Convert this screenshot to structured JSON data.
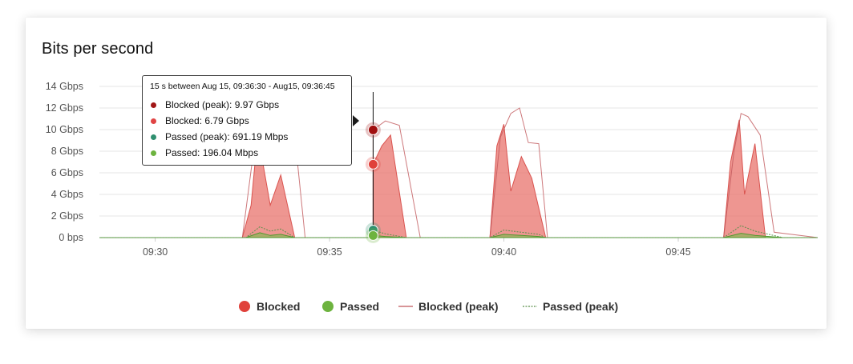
{
  "card": {
    "title": "Bits per second"
  },
  "tooltip": {
    "header": "15 s between Aug 15, 09:36:30 - Aug15, 09:36:45",
    "rows": [
      {
        "label": "Blocked (peak): 9.97 Gbps",
        "color": "#a11616"
      },
      {
        "label": "Blocked: 6.79 Gbps",
        "color": "#e04444"
      },
      {
        "label": "Passed (peak): 691.19 Mbps",
        "color": "#2f8f6f"
      },
      {
        "label": "Passed: 196.04 Mbps",
        "color": "#6db33f"
      }
    ]
  },
  "legend": {
    "blocked": "Blocked",
    "passed": "Passed",
    "blocked_peak": "Blocked (peak)",
    "passed_peak": "Passed (peak)"
  },
  "colors": {
    "blocked_fill": "#e8736c",
    "blocked_line": "#d9534f",
    "blocked_peak_line": "#c0565a",
    "passed_fill": "#7dbb4e",
    "passed_line": "#4f9a2f",
    "passed_peak_line": "#5a8f4a",
    "blocked_dot": "#e0413b",
    "passed_dot": "#6db33f",
    "peak_dot": "#a10f0f",
    "passed_peak_dot": "#2f8f6f",
    "grid": "#e6e6e6"
  },
  "chart_data": {
    "type": "area",
    "title": "Bits per second",
    "y_unit": "Gbps",
    "ylim": [
      0,
      14
    ],
    "yticks": [
      {
        "value": 0,
        "label": "0 bps"
      },
      {
        "value": 2,
        "label": "2 Gbps"
      },
      {
        "value": 4,
        "label": "4 Gbps"
      },
      {
        "value": 6,
        "label": "6 Gbps"
      },
      {
        "value": 8,
        "label": "8 Gbps"
      },
      {
        "value": 10,
        "label": "10 Gbps"
      },
      {
        "value": 12,
        "label": "12 Gbps"
      },
      {
        "value": 14,
        "label": "14 Gbps"
      }
    ],
    "x_unit": "minutes after 09:00",
    "xlim": [
      28.4,
      49.0
    ],
    "xticks": [
      {
        "value": 30,
        "label": "09:30"
      },
      {
        "value": 35,
        "label": "09:35"
      },
      {
        "value": 40,
        "label": "09:40"
      },
      {
        "value": 45,
        "label": "09:45"
      }
    ],
    "grid": true,
    "legend_position": "bottom",
    "hover_x": 36.25,
    "series": [
      {
        "name": "Blocked",
        "style": "area",
        "points": [
          [
            28.4,
            0
          ],
          [
            32.5,
            0
          ],
          [
            32.75,
            3
          ],
          [
            32.9,
            8.2
          ],
          [
            33.0,
            8.5
          ],
          [
            33.3,
            3
          ],
          [
            33.6,
            5.8
          ],
          [
            34.0,
            0
          ],
          [
            36.25,
            0
          ],
          [
            36.25,
            6.8
          ],
          [
            36.5,
            8.5
          ],
          [
            36.75,
            9.5
          ],
          [
            37.2,
            0
          ],
          [
            39.6,
            0
          ],
          [
            39.8,
            8.5
          ],
          [
            40.0,
            10.5
          ],
          [
            40.2,
            4.3
          ],
          [
            40.5,
            7.5
          ],
          [
            40.8,
            5.5
          ],
          [
            41.2,
            0
          ],
          [
            46.3,
            0
          ],
          [
            46.5,
            7
          ],
          [
            46.75,
            10.9
          ],
          [
            46.9,
            4
          ],
          [
            47.2,
            8.7
          ],
          [
            47.5,
            0
          ],
          [
            49.0,
            0
          ]
        ]
      },
      {
        "name": "Passed",
        "style": "area",
        "points": [
          [
            28.4,
            0
          ],
          [
            32.6,
            0
          ],
          [
            33.0,
            0.45
          ],
          [
            33.3,
            0.2
          ],
          [
            33.6,
            0.3
          ],
          [
            34.0,
            0
          ],
          [
            36.25,
            0
          ],
          [
            36.25,
            0.2
          ],
          [
            36.6,
            0.1
          ],
          [
            37.2,
            0
          ],
          [
            39.6,
            0
          ],
          [
            40.0,
            0.3
          ],
          [
            40.5,
            0.2
          ],
          [
            41.0,
            0.1
          ],
          [
            41.2,
            0
          ],
          [
            46.3,
            0
          ],
          [
            46.8,
            0.4
          ],
          [
            47.2,
            0.2
          ],
          [
            48.0,
            0
          ],
          [
            49.0,
            0
          ]
        ]
      },
      {
        "name": "Blocked (peak)",
        "style": "dotted-line",
        "points": [
          [
            28.4,
            0
          ],
          [
            32.5,
            0
          ],
          [
            32.8,
            7.5
          ],
          [
            33.0,
            8.8
          ],
          [
            33.3,
            9.8
          ],
          [
            33.8,
            10.8
          ],
          [
            34.0,
            9.5
          ],
          [
            34.3,
            0
          ],
          [
            36.25,
            0
          ],
          [
            36.25,
            9.97
          ],
          [
            36.6,
            10.8
          ],
          [
            37.0,
            10.4
          ],
          [
            37.6,
            0
          ],
          [
            39.6,
            0
          ],
          [
            39.9,
            9.3
          ],
          [
            40.2,
            11.5
          ],
          [
            40.45,
            12
          ],
          [
            40.7,
            8.8
          ],
          [
            41.0,
            8.7
          ],
          [
            41.25,
            0
          ],
          [
            46.3,
            0
          ],
          [
            46.6,
            8
          ],
          [
            46.8,
            11.5
          ],
          [
            47.0,
            11.2
          ],
          [
            47.35,
            9.5
          ],
          [
            47.75,
            0.5
          ],
          [
            49.0,
            0
          ]
        ]
      },
      {
        "name": "Passed (peak)",
        "style": "dotted-line",
        "points": [
          [
            28.4,
            0
          ],
          [
            32.6,
            0
          ],
          [
            33.0,
            1.0
          ],
          [
            33.3,
            0.6
          ],
          [
            33.6,
            0.8
          ],
          [
            34.0,
            0
          ],
          [
            36.25,
            0
          ],
          [
            36.25,
            0.69
          ],
          [
            36.6,
            0.35
          ],
          [
            37.2,
            0
          ],
          [
            39.6,
            0
          ],
          [
            40.0,
            0.7
          ],
          [
            40.5,
            0.5
          ],
          [
            41.0,
            0.3
          ],
          [
            41.2,
            0
          ],
          [
            46.3,
            0
          ],
          [
            46.8,
            1.1
          ],
          [
            47.2,
            0.6
          ],
          [
            48.0,
            0
          ],
          [
            49.0,
            0
          ]
        ]
      }
    ],
    "hover_values": {
      "blocked_peak": 9.97,
      "blocked": 6.79,
      "passed_peak": 0.69119,
      "passed": 0.19604
    }
  }
}
